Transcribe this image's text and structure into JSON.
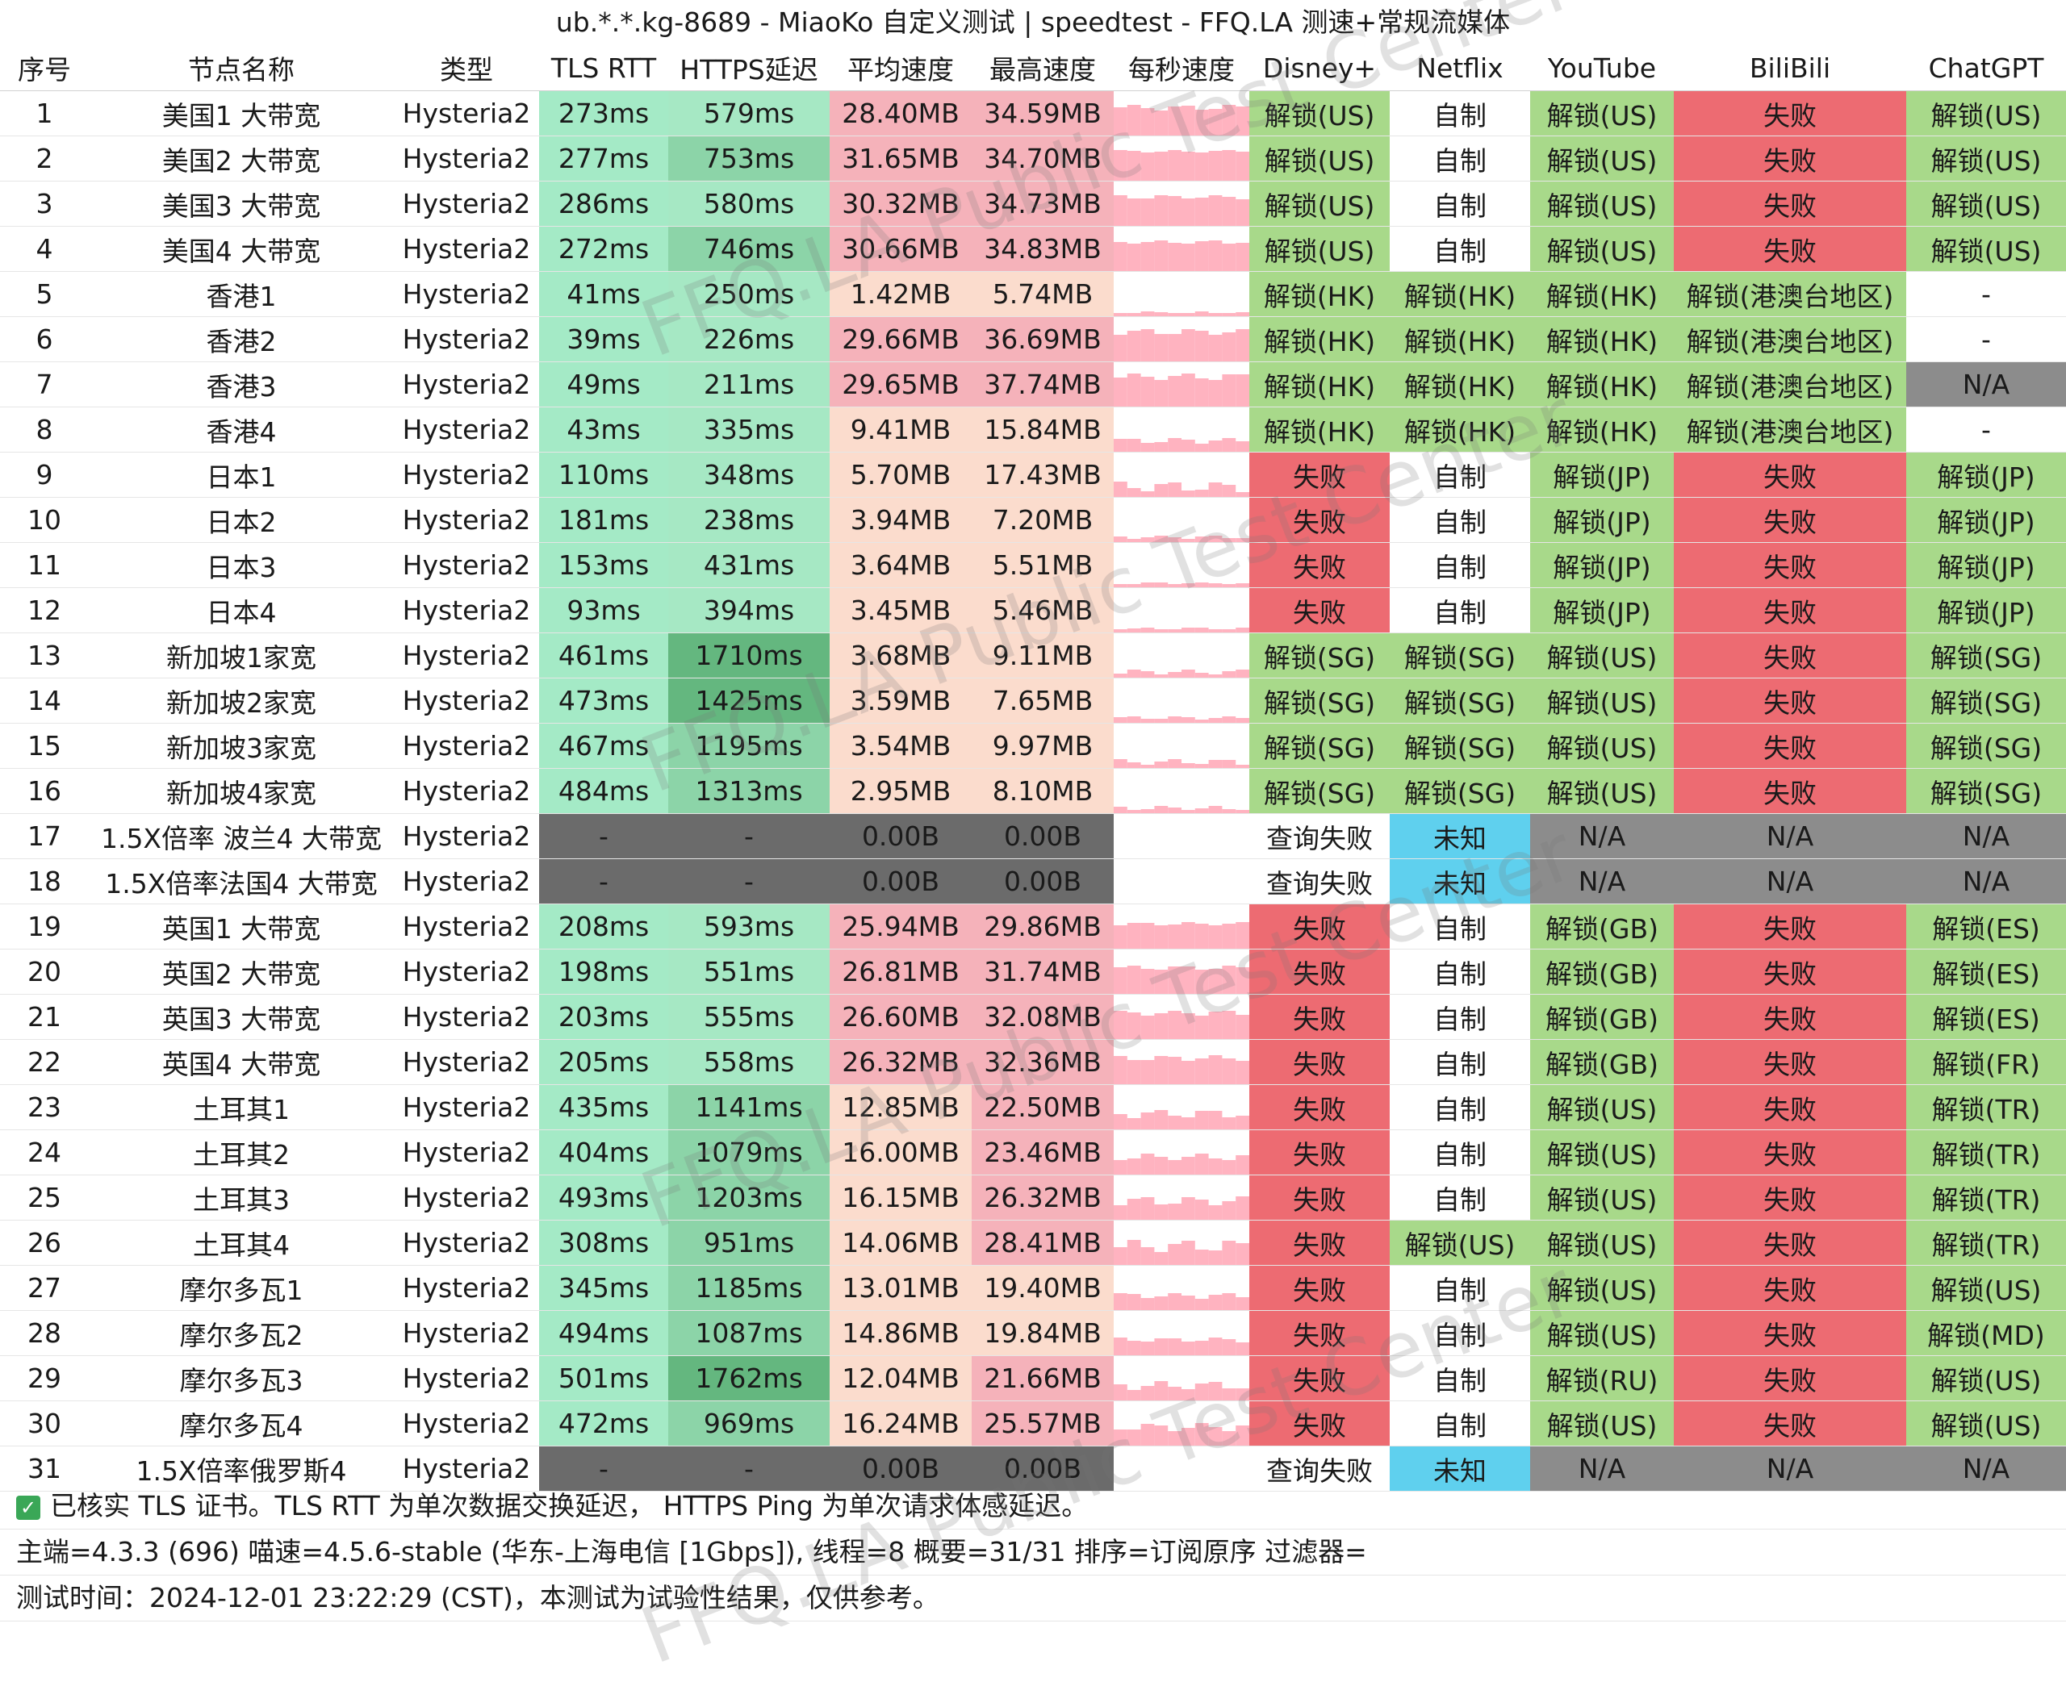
{
  "title": "ub.*.*.kg-8689 - MiaoKo 自定义测试 | speedtest - FFQ.LA 测速+常规流媒体",
  "columns": [
    "序号",
    "节点名称",
    "类型",
    "TLS RTT",
    "HTTPS延迟",
    "平均速度",
    "最高速度",
    "每秒速度",
    "Disney+",
    "Netflix",
    "YouTube",
    "BiliBili",
    "ChatGPT"
  ],
  "rows": [
    {
      "idx": "1",
      "name": "美国1 大带宽",
      "type": "Hysteria2",
      "tls": "273ms",
      "https": "579ms",
      "avg": "28.40MB",
      "max": "34.59MB",
      "disney": "解锁(US)",
      "netflix": "自制",
      "youtube": "解锁(US)",
      "bilibili": "失败",
      "chatgpt": "解锁(US)"
    },
    {
      "idx": "2",
      "name": "美国2 大带宽",
      "type": "Hysteria2",
      "tls": "277ms",
      "https": "753ms",
      "avg": "31.65MB",
      "max": "34.70MB",
      "disney": "解锁(US)",
      "netflix": "自制",
      "youtube": "解锁(US)",
      "bilibili": "失败",
      "chatgpt": "解锁(US)"
    },
    {
      "idx": "3",
      "name": "美国3 大带宽",
      "type": "Hysteria2",
      "tls": "286ms",
      "https": "580ms",
      "avg": "30.32MB",
      "max": "34.73MB",
      "disney": "解锁(US)",
      "netflix": "自制",
      "youtube": "解锁(US)",
      "bilibili": "失败",
      "chatgpt": "解锁(US)"
    },
    {
      "idx": "4",
      "name": "美国4 大带宽",
      "type": "Hysteria2",
      "tls": "272ms",
      "https": "746ms",
      "avg": "30.66MB",
      "max": "34.83MB",
      "disney": "解锁(US)",
      "netflix": "自制",
      "youtube": "解锁(US)",
      "bilibili": "失败",
      "chatgpt": "解锁(US)"
    },
    {
      "idx": "5",
      "name": "香港1",
      "type": "Hysteria2",
      "tls": "41ms",
      "https": "250ms",
      "avg": "1.42MB",
      "max": "5.74MB",
      "disney": "解锁(HK)",
      "netflix": "解锁(HK)",
      "youtube": "解锁(HK)",
      "bilibili": "解锁(港澳台地区)",
      "chatgpt": "-"
    },
    {
      "idx": "6",
      "name": "香港2",
      "type": "Hysteria2",
      "tls": "39ms",
      "https": "226ms",
      "avg": "29.66MB",
      "max": "36.69MB",
      "disney": "解锁(HK)",
      "netflix": "解锁(HK)",
      "youtube": "解锁(HK)",
      "bilibili": "解锁(港澳台地区)",
      "chatgpt": "-"
    },
    {
      "idx": "7",
      "name": "香港3",
      "type": "Hysteria2",
      "tls": "49ms",
      "https": "211ms",
      "avg": "29.65MB",
      "max": "37.74MB",
      "disney": "解锁(HK)",
      "netflix": "解锁(HK)",
      "youtube": "解锁(HK)",
      "bilibili": "解锁(港澳台地区)",
      "chatgpt": "N/A"
    },
    {
      "idx": "8",
      "name": "香港4",
      "type": "Hysteria2",
      "tls": "43ms",
      "https": "335ms",
      "avg": "9.41MB",
      "max": "15.84MB",
      "disney": "解锁(HK)",
      "netflix": "解锁(HK)",
      "youtube": "解锁(HK)",
      "bilibili": "解锁(港澳台地区)",
      "chatgpt": "-"
    },
    {
      "idx": "9",
      "name": "日本1",
      "type": "Hysteria2",
      "tls": "110ms",
      "https": "348ms",
      "avg": "5.70MB",
      "max": "17.43MB",
      "disney": "失败",
      "netflix": "自制",
      "youtube": "解锁(JP)",
      "bilibili": "失败",
      "chatgpt": "解锁(JP)"
    },
    {
      "idx": "10",
      "name": "日本2",
      "type": "Hysteria2",
      "tls": "181ms",
      "https": "238ms",
      "avg": "3.94MB",
      "max": "7.20MB",
      "disney": "失败",
      "netflix": "自制",
      "youtube": "解锁(JP)",
      "bilibili": "失败",
      "chatgpt": "解锁(JP)"
    },
    {
      "idx": "11",
      "name": "日本3",
      "type": "Hysteria2",
      "tls": "153ms",
      "https": "431ms",
      "avg": "3.64MB",
      "max": "5.51MB",
      "disney": "失败",
      "netflix": "自制",
      "youtube": "解锁(JP)",
      "bilibili": "失败",
      "chatgpt": "解锁(JP)"
    },
    {
      "idx": "12",
      "name": "日本4",
      "type": "Hysteria2",
      "tls": "93ms",
      "https": "394ms",
      "avg": "3.45MB",
      "max": "5.46MB",
      "disney": "失败",
      "netflix": "自制",
      "youtube": "解锁(JP)",
      "bilibili": "失败",
      "chatgpt": "解锁(JP)"
    },
    {
      "idx": "13",
      "name": "新加坡1家宽",
      "type": "Hysteria2",
      "tls": "461ms",
      "https": "1710ms",
      "avg": "3.68MB",
      "max": "9.11MB",
      "disney": "解锁(SG)",
      "netflix": "解锁(SG)",
      "youtube": "解锁(US)",
      "bilibili": "失败",
      "chatgpt": "解锁(SG)"
    },
    {
      "idx": "14",
      "name": "新加坡2家宽",
      "type": "Hysteria2",
      "tls": "473ms",
      "https": "1425ms",
      "avg": "3.59MB",
      "max": "7.65MB",
      "disney": "解锁(SG)",
      "netflix": "解锁(SG)",
      "youtube": "解锁(US)",
      "bilibili": "失败",
      "chatgpt": "解锁(SG)"
    },
    {
      "idx": "15",
      "name": "新加坡3家宽",
      "type": "Hysteria2",
      "tls": "467ms",
      "https": "1195ms",
      "avg": "3.54MB",
      "max": "9.97MB",
      "disney": "解锁(SG)",
      "netflix": "解锁(SG)",
      "youtube": "解锁(US)",
      "bilibili": "失败",
      "chatgpt": "解锁(SG)"
    },
    {
      "idx": "16",
      "name": "新加坡4家宽",
      "type": "Hysteria2",
      "tls": "484ms",
      "https": "1313ms",
      "avg": "2.95MB",
      "max": "8.10MB",
      "disney": "解锁(SG)",
      "netflix": "解锁(SG)",
      "youtube": "解锁(US)",
      "bilibili": "失败",
      "chatgpt": "解锁(SG)"
    },
    {
      "idx": "17",
      "name": "1.5X倍率 波兰4 大带宽",
      "type": "Hysteria2",
      "tls": "-",
      "https": "-",
      "avg": "0.00B",
      "max": "0.00B",
      "disney": "查询失败",
      "netflix": "未知",
      "youtube": "N/A",
      "bilibili": "N/A",
      "chatgpt": "N/A"
    },
    {
      "idx": "18",
      "name": "1.5X倍率法国4 大带宽",
      "type": "Hysteria2",
      "tls": "-",
      "https": "-",
      "avg": "0.00B",
      "max": "0.00B",
      "disney": "查询失败",
      "netflix": "未知",
      "youtube": "N/A",
      "bilibili": "N/A",
      "chatgpt": "N/A"
    },
    {
      "idx": "19",
      "name": "英国1 大带宽",
      "type": "Hysteria2",
      "tls": "208ms",
      "https": "593ms",
      "avg": "25.94MB",
      "max": "29.86MB",
      "disney": "失败",
      "netflix": "自制",
      "youtube": "解锁(GB)",
      "bilibili": "失败",
      "chatgpt": "解锁(ES)"
    },
    {
      "idx": "20",
      "name": "英国2 大带宽",
      "type": "Hysteria2",
      "tls": "198ms",
      "https": "551ms",
      "avg": "26.81MB",
      "max": "31.74MB",
      "disney": "失败",
      "netflix": "自制",
      "youtube": "解锁(GB)",
      "bilibili": "失败",
      "chatgpt": "解锁(ES)"
    },
    {
      "idx": "21",
      "name": "英国3 大带宽",
      "type": "Hysteria2",
      "tls": "203ms",
      "https": "555ms",
      "avg": "26.60MB",
      "max": "32.08MB",
      "disney": "失败",
      "netflix": "自制",
      "youtube": "解锁(GB)",
      "bilibili": "失败",
      "chatgpt": "解锁(ES)"
    },
    {
      "idx": "22",
      "name": "英国4 大带宽",
      "type": "Hysteria2",
      "tls": "205ms",
      "https": "558ms",
      "avg": "26.32MB",
      "max": "32.36MB",
      "disney": "失败",
      "netflix": "自制",
      "youtube": "解锁(GB)",
      "bilibili": "失败",
      "chatgpt": "解锁(FR)"
    },
    {
      "idx": "23",
      "name": "土耳其1",
      "type": "Hysteria2",
      "tls": "435ms",
      "https": "1141ms",
      "avg": "12.85MB",
      "max": "22.50MB",
      "disney": "失败",
      "netflix": "自制",
      "youtube": "解锁(US)",
      "bilibili": "失败",
      "chatgpt": "解锁(TR)"
    },
    {
      "idx": "24",
      "name": "土耳其2",
      "type": "Hysteria2",
      "tls": "404ms",
      "https": "1079ms",
      "avg": "16.00MB",
      "max": "23.46MB",
      "disney": "失败",
      "netflix": "自制",
      "youtube": "解锁(US)",
      "bilibili": "失败",
      "chatgpt": "解锁(TR)"
    },
    {
      "idx": "25",
      "name": "土耳其3",
      "type": "Hysteria2",
      "tls": "493ms",
      "https": "1203ms",
      "avg": "16.15MB",
      "max": "26.32MB",
      "disney": "失败",
      "netflix": "自制",
      "youtube": "解锁(US)",
      "bilibili": "失败",
      "chatgpt": "解锁(TR)"
    },
    {
      "idx": "26",
      "name": "土耳其4",
      "type": "Hysteria2",
      "tls": "308ms",
      "https": "951ms",
      "avg": "14.06MB",
      "max": "28.41MB",
      "disney": "失败",
      "netflix": "解锁(US)",
      "youtube": "解锁(US)",
      "bilibili": "失败",
      "chatgpt": "解锁(TR)"
    },
    {
      "idx": "27",
      "name": "摩尔多瓦1",
      "type": "Hysteria2",
      "tls": "345ms",
      "https": "1185ms",
      "avg": "13.01MB",
      "max": "19.40MB",
      "disney": "失败",
      "netflix": "自制",
      "youtube": "解锁(US)",
      "bilibili": "失败",
      "chatgpt": "解锁(US)"
    },
    {
      "idx": "28",
      "name": "摩尔多瓦2",
      "type": "Hysteria2",
      "tls": "494ms",
      "https": "1087ms",
      "avg": "14.86MB",
      "max": "19.84MB",
      "disney": "失败",
      "netflix": "自制",
      "youtube": "解锁(US)",
      "bilibili": "失败",
      "chatgpt": "解锁(MD)"
    },
    {
      "idx": "29",
      "name": "摩尔多瓦3",
      "type": "Hysteria2",
      "tls": "501ms",
      "https": "1762ms",
      "avg": "12.04MB",
      "max": "21.66MB",
      "disney": "失败",
      "netflix": "自制",
      "youtube": "解锁(RU)",
      "bilibili": "失败",
      "chatgpt": "解锁(US)"
    },
    {
      "idx": "30",
      "name": "摩尔多瓦4",
      "type": "Hysteria2",
      "tls": "472ms",
      "https": "969ms",
      "avg": "16.24MB",
      "max": "25.57MB",
      "disney": "失败",
      "netflix": "自制",
      "youtube": "解锁(US)",
      "bilibili": "失败",
      "chatgpt": "解锁(US)"
    },
    {
      "idx": "31",
      "name": "1.5X倍率俄罗斯4",
      "type": "Hysteria2",
      "tls": "-",
      "https": "-",
      "avg": "0.00B",
      "max": "0.00B",
      "disney": "查询失败",
      "netflix": "未知",
      "youtube": "N/A",
      "bilibili": "N/A",
      "chatgpt": "N/A"
    }
  ],
  "footer": {
    "check_icon": "check-icon",
    "note": "已核实 TLS 证书。TLS RTT 为单次数据交换延迟， HTTPS Ping 为单次请求体感延迟。",
    "info": "主端=4.3.3 (696) 喵速=4.5.6-stable (华东-上海电信 [1Gbps]), 线程=8 概要=31/31 排序=订阅原序 过滤器=",
    "time": "测试时间：2024-12-01 23:22:29 (CST)，本测试为试验性结果，仅供参考。"
  },
  "watermark": "FFQ.LA Public Test Center",
  "colors": {
    "success": "#a8d98a",
    "fail": "#ed6b72",
    "na": "#8c8c8c",
    "unknown": "#5fd0ee",
    "empty": "#ffffff",
    "tls_bg": "#a4eac6",
    "https_light": "#a6e8c4",
    "https_mid": "#8cd4a8",
    "https_dark": "#64b77f",
    "dead_bg": "#6b6b6b",
    "speed_high": "#f5b2ba",
    "speed_low": "#fbdccd",
    "spark": "#ffb3c0"
  }
}
